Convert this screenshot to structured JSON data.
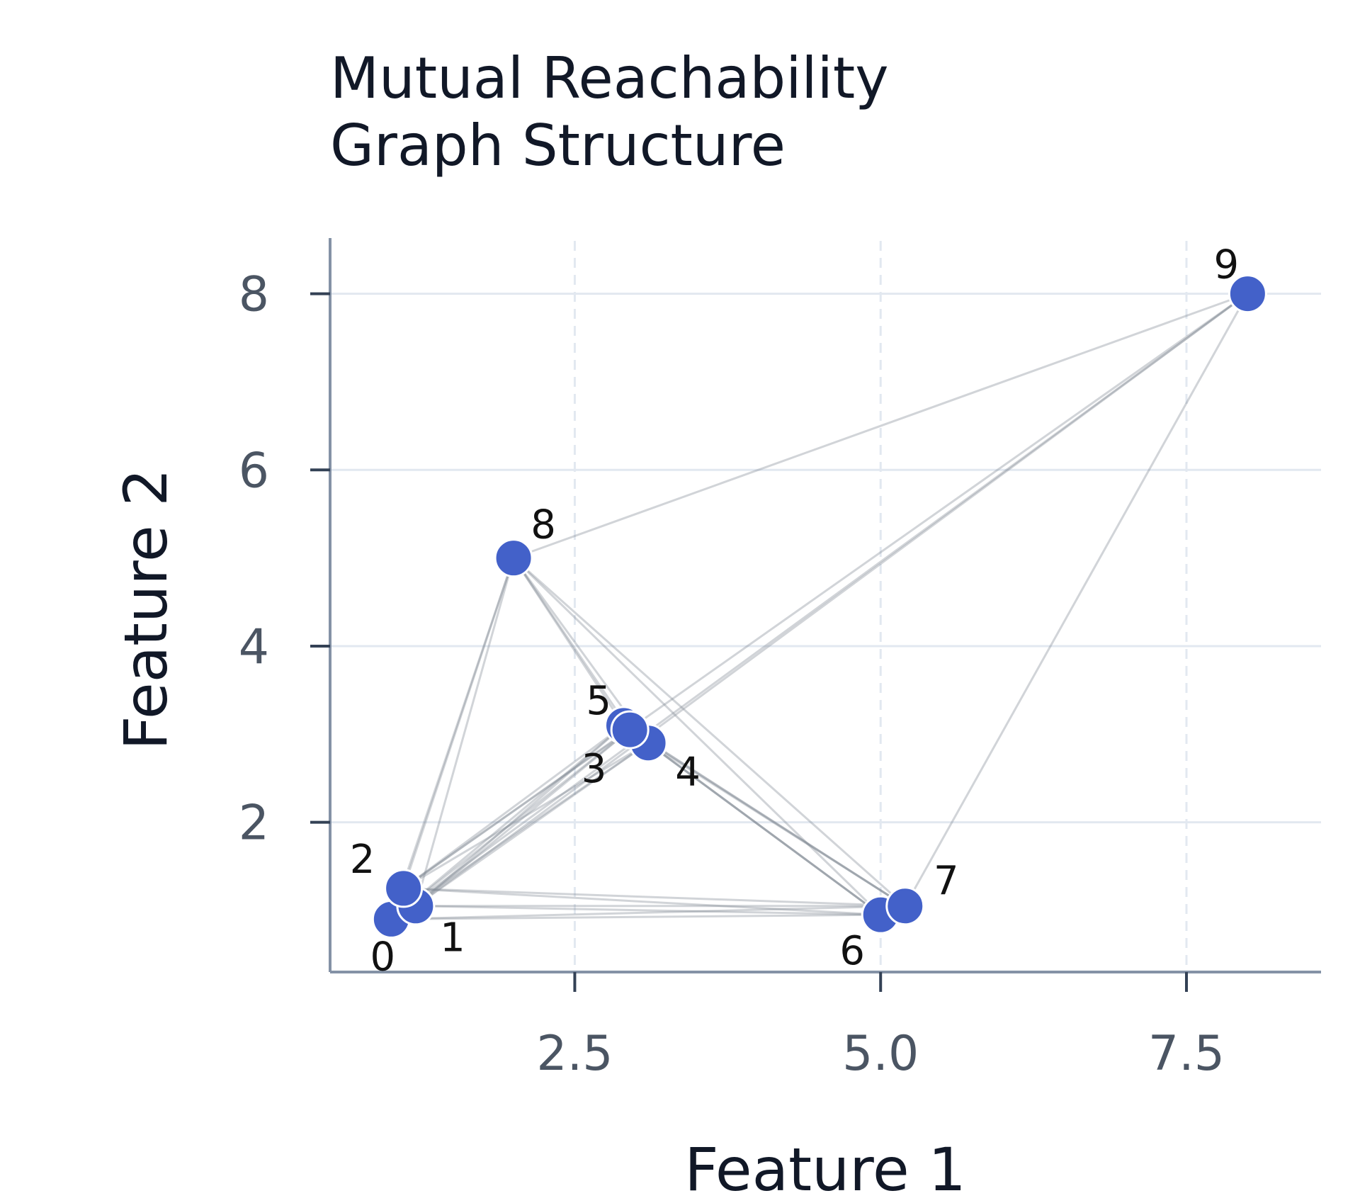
{
  "chart_data": {
    "type": "scatter",
    "title_lines": [
      "Mutual Reachability",
      "Graph Structure"
    ],
    "xlabel": "Feature 1",
    "ylabel": "Feature 2",
    "xlim": [
      0.5,
      8.6
    ],
    "ylim": [
      0.3,
      8.6
    ],
    "x_ticks": [
      2.5,
      5.0,
      7.5
    ],
    "x_tick_labels": [
      "2.5",
      "5.0",
      "7.5"
    ],
    "y_ticks": [
      2,
      4,
      6,
      8
    ],
    "y_tick_labels": [
      "2",
      "4",
      "6",
      "8"
    ],
    "grid": true,
    "colors": {
      "point": "#4361c9",
      "point_edge": "#ffffff",
      "edge": "#7b8490",
      "grid": "#e2e8f0",
      "axis": "#8492a6"
    },
    "points": [
      {
        "label": "0",
        "x": 1.0,
        "y": 0.9
      },
      {
        "label": "1",
        "x": 1.2,
        "y": 1.05
      },
      {
        "label": "2",
        "x": 1.1,
        "y": 1.25
      },
      {
        "label": "3",
        "x": 2.9,
        "y": 3.1
      },
      {
        "label": "4",
        "x": 3.1,
        "y": 2.9
      },
      {
        "label": "5",
        "x": 2.95,
        "y": 3.05
      },
      {
        "label": "6",
        "x": 5.0,
        "y": 0.95
      },
      {
        "label": "7",
        "x": 5.2,
        "y": 1.05
      },
      {
        "label": "8",
        "x": 2.0,
        "y": 5.0
      },
      {
        "label": "9",
        "x": 8.0,
        "y": 8.0
      }
    ],
    "edges": [
      [
        0,
        1
      ],
      [
        0,
        2
      ],
      [
        1,
        2
      ],
      [
        0,
        3
      ],
      [
        0,
        4
      ],
      [
        0,
        5
      ],
      [
        1,
        3
      ],
      [
        1,
        4
      ],
      [
        1,
        5
      ],
      [
        2,
        3
      ],
      [
        2,
        4
      ],
      [
        2,
        5
      ],
      [
        0,
        6
      ],
      [
        0,
        7
      ],
      [
        1,
        6
      ],
      [
        1,
        7
      ],
      [
        2,
        6
      ],
      [
        2,
        7
      ],
      [
        0,
        8
      ],
      [
        1,
        8
      ],
      [
        2,
        8
      ],
      [
        3,
        4
      ],
      [
        3,
        5
      ],
      [
        4,
        5
      ],
      [
        3,
        6
      ],
      [
        4,
        6
      ],
      [
        5,
        6
      ],
      [
        3,
        7
      ],
      [
        4,
        7
      ],
      [
        5,
        7
      ],
      [
        3,
        8
      ],
      [
        4,
        8
      ],
      [
        5,
        8
      ],
      [
        6,
        7
      ],
      [
        6,
        8
      ],
      [
        7,
        8
      ],
      [
        9,
        0
      ],
      [
        9,
        1
      ],
      [
        9,
        2
      ],
      [
        9,
        7
      ],
      [
        9,
        8
      ]
    ]
  }
}
